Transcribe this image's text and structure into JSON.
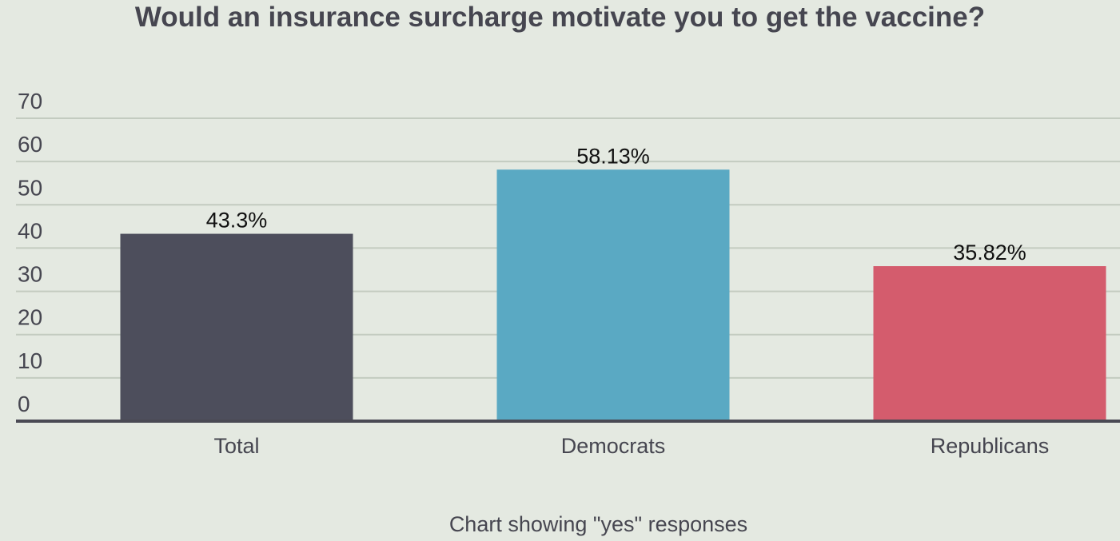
{
  "chart_data": {
    "type": "bar",
    "title": "Would an insurance surcharge motivate you to get the vaccine?",
    "xlabel": "Chart showing \"yes\" responses",
    "ylabel": "",
    "categories": [
      "Total",
      "Democrats",
      "Republicans"
    ],
    "values": [
      43.3,
      58.13,
      35.82
    ],
    "data_labels": [
      "43.3%",
      "58.13%",
      "35.82%"
    ],
    "colors": [
      "#4d4e5c",
      "#5aa9c3",
      "#d45c6d"
    ],
    "ylim": [
      0,
      70
    ],
    "yticks": [
      0,
      10,
      20,
      30,
      40,
      50,
      60,
      70
    ],
    "grid": true,
    "legend": "none"
  }
}
